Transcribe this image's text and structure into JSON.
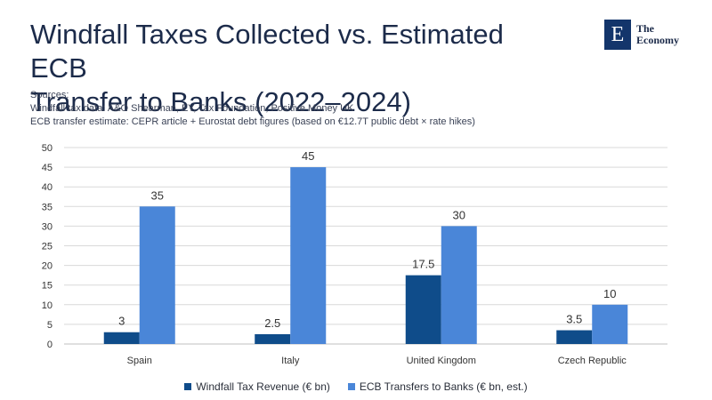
{
  "header": {
    "title_line1": "Windfall Taxes Collected vs. Estimated ECB",
    "title_line2": "Transfer to Banks (2022–2024)"
  },
  "logo": {
    "mark": "E",
    "line1": "The",
    "line2": "Economy"
  },
  "sources": {
    "heading": "Sources:",
    "line1": "Windfall tax data: A&O Shearman, EY, Tax Foundation, Positive Money UK",
    "line2": "ECB transfer estimate: CEPR article + Eurostat debt figures (based on €12.7T public debt × rate hikes)"
  },
  "chart_data": {
    "type": "bar",
    "categories": [
      "Spain",
      "Italy",
      "United Kingdom",
      "Czech Republic"
    ],
    "series": [
      {
        "name": "Windfall Tax Revenue (€ bn)",
        "values": [
          3,
          2.5,
          17.5,
          3.5
        ],
        "color": "#0f4c8a"
      },
      {
        "name": "ECB Transfers to Banks (€ bn, est.)",
        "values": [
          35,
          45,
          30,
          10
        ],
        "color": "#4a86d8"
      }
    ],
    "ylim": [
      0,
      50
    ],
    "yticks": [
      0,
      5,
      10,
      15,
      20,
      25,
      30,
      35,
      40,
      45,
      50
    ],
    "grid": true,
    "legend_position": "bottom"
  }
}
